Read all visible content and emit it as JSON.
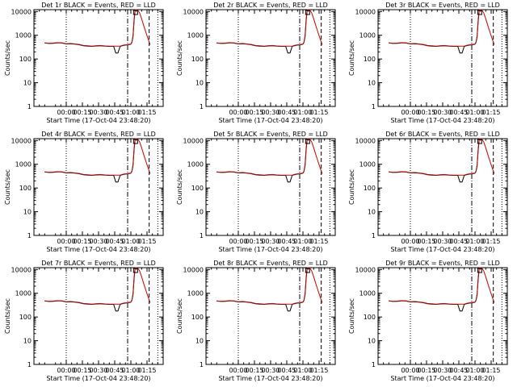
{
  "colors": {
    "events": "#000000",
    "lld": "#cc0000",
    "background": "#ffffff"
  },
  "chart_data": [
    {
      "type": "line",
      "title": "Det 1r BLACK = Events, RED = LLD",
      "ylabel": "Counts/sec",
      "xlabel": "Start Time (17-Oct-04 23:48:20)",
      "x_ticks": [
        "00:00",
        "00:15",
        "00:30",
        "00:45",
        "01:00",
        "01:15"
      ],
      "y_ticks": [
        "1",
        "10",
        "100",
        "1000",
        "10000"
      ],
      "yscale": "log",
      "ylim": [
        1,
        12000
      ]
    },
    {
      "type": "line",
      "title": "Det 2r BLACK = Events, RED = LLD",
      "ylabel": "Counts/sec",
      "xlabel": "Start Time (17-Oct-04 23:48:20)",
      "x_ticks": [
        "00:00",
        "00:15",
        "00:30",
        "00:45",
        "01:00",
        "01:15"
      ],
      "y_ticks": [
        "1",
        "10",
        "100",
        "1000",
        "10000"
      ],
      "yscale": "log",
      "ylim": [
        1,
        12000
      ]
    },
    {
      "type": "line",
      "title": "Det 3r BLACK = Events, RED = LLD",
      "ylabel": "Counts/sec",
      "xlabel": "Start Time (17-Oct-04 23:48:20)",
      "x_ticks": [
        "00:00",
        "00:15",
        "00:30",
        "00:45",
        "01:00",
        "01:15"
      ],
      "y_ticks": [
        "1",
        "10",
        "100",
        "1000",
        "10000"
      ],
      "yscale": "log",
      "ylim": [
        1,
        12000
      ]
    },
    {
      "type": "line",
      "title": "Det 4r BLACK = Events, RED = LLD",
      "ylabel": "Counts/sec",
      "xlabel": "Start Time (17-Oct-04 23:48:20)",
      "x_ticks": [
        "00:00",
        "00:15",
        "00:30",
        "00:45",
        "01:00",
        "01:15"
      ],
      "y_ticks": [
        "1",
        "10",
        "100",
        "1000",
        "10000"
      ],
      "yscale": "log",
      "ylim": [
        1,
        12000
      ]
    },
    {
      "type": "line",
      "title": "Det 5r BLACK = Events, RED = LLD",
      "ylabel": "Counts/sec",
      "xlabel": "Start Time (17-Oct-04 23:48:20)",
      "x_ticks": [
        "00:00",
        "00:15",
        "00:30",
        "00:45",
        "01:00",
        "01:15"
      ],
      "y_ticks": [
        "1",
        "10",
        "100",
        "1000",
        "10000"
      ],
      "yscale": "log",
      "ylim": [
        1,
        12000
      ]
    },
    {
      "type": "line",
      "title": "Det 6r BLACK = Events, RED = LLD",
      "ylabel": "Counts/sec",
      "xlabel": "Start Time (17-Oct-04 23:48:20)",
      "x_ticks": [
        "00:00",
        "00:15",
        "00:30",
        "00:45",
        "01:00",
        "01:15"
      ],
      "y_ticks": [
        "1",
        "10",
        "100",
        "1000",
        "10000"
      ],
      "yscale": "log",
      "ylim": [
        1,
        12000
      ]
    },
    {
      "type": "line",
      "title": "Det 7r BLACK = Events, RED = LLD",
      "ylabel": "Counts/sec",
      "xlabel": "Start Time (17-Oct-04 23:48:20)",
      "x_ticks": [
        "00:00",
        "00:15",
        "00:30",
        "00:45",
        "01:00",
        "01:15"
      ],
      "y_ticks": [
        "1",
        "10",
        "100",
        "1000",
        "10000"
      ],
      "yscale": "log",
      "ylim": [
        1,
        12000
      ]
    },
    {
      "type": "line",
      "title": "Det 8r BLACK = Events, RED = LLD",
      "ylabel": "Counts/sec",
      "xlabel": "Start Time (17-Oct-04 23:48:20)",
      "x_ticks": [
        "00:00",
        "00:15",
        "00:30",
        "00:45",
        "01:00",
        "01:15"
      ],
      "y_ticks": [
        "1",
        "10",
        "100",
        "1000",
        "10000"
      ],
      "yscale": "log",
      "ylim": [
        1,
        12000
      ]
    },
    {
      "type": "line",
      "title": "Det 9r BLACK = Events, RED = LLD",
      "ylabel": "Counts/sec",
      "xlabel": "Start Time (17-Oct-04 23:48:20)",
      "x_ticks": [
        "00:00",
        "00:15",
        "00:30",
        "00:45",
        "01:00",
        "01:15"
      ],
      "y_ticks": [
        "1",
        "10",
        "100",
        "1000",
        "10000"
      ],
      "yscale": "log",
      "ylim": [
        1,
        12000
      ]
    }
  ],
  "series": {
    "x_minutes": [
      -20,
      -16,
      -12,
      -8,
      -4,
      0,
      4,
      8,
      12,
      16,
      20,
      24,
      28,
      32,
      36,
      40,
      44,
      46,
      48,
      50,
      52,
      54,
      56,
      58,
      60,
      61,
      62,
      63,
      64,
      66,
      68,
      70,
      72,
      74,
      76,
      78
    ],
    "events": [
      470,
      450,
      460,
      480,
      470,
      430,
      440,
      420,
      400,
      360,
      350,
      340,
      355,
      360,
      345,
      340,
      340,
      180,
      180,
      340,
      360,
      380,
      390,
      400,
      420,
      500,
      900,
      4000,
      12000,
      12000,
      null,
      null,
      null,
      null,
      null,
      null
    ],
    "lld": [
      480,
      460,
      470,
      490,
      480,
      440,
      450,
      430,
      410,
      370,
      360,
      350,
      365,
      370,
      355,
      350,
      350,
      350,
      350,
      350,
      370,
      390,
      400,
      410,
      430,
      520,
      1000,
      5000,
      12000,
      12000,
      9000,
      5000,
      2500,
      1300,
      700,
      400
    ],
    "dotted_lines_min": [
      0,
      85
    ],
    "dashdot_line_min": 57,
    "dashed_line_min": 77
  }
}
